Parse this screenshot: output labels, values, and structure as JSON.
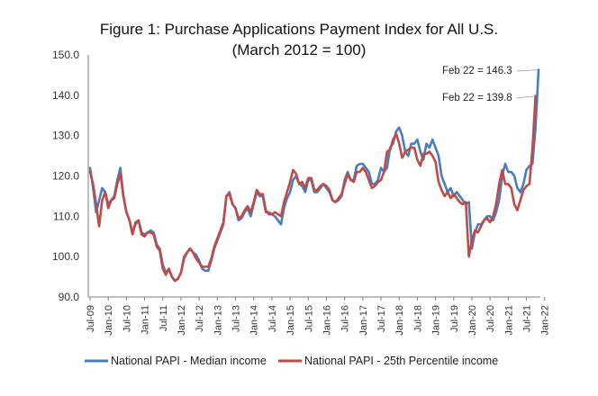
{
  "chart_data": {
    "type": "line",
    "title": "Figure 1: Purchase Applications Payment Index for All U.S.",
    "subtitle": "(March 2012 = 100)",
    "xlabel": "",
    "ylabel": "",
    "ylim": [
      90,
      150
    ],
    "yticks": [
      90,
      100,
      110,
      120,
      130,
      140,
      150
    ],
    "ytick_labels": [
      "90.0",
      "100.0",
      "110.0",
      "120.0",
      "130.0",
      "140.0",
      "150.0"
    ],
    "xtick_labels": [
      "Jul-09",
      "Jan-10",
      "Jul-10",
      "Jan-11",
      "Jul-11",
      "Jan-12",
      "Jul-12",
      "Jan-13",
      "Jul-13",
      "Jan-14",
      "Jul-14",
      "Jan-15",
      "Jul-15",
      "Jan-16",
      "Jul-16",
      "Jan-17",
      "Jul-17",
      "Jan-18",
      "Jul-18",
      "Jan-19",
      "Jul-19",
      "Jan-20",
      "Jul-20",
      "Jan-21",
      "Jul-21",
      "Jan-22"
    ],
    "x_start": "Jul-09",
    "x_end": "Feb-22",
    "grid": false,
    "legend_position": "bottom",
    "series": [
      {
        "name": "National PAPI - Median income",
        "color": "#4a7ebb",
        "values": [
          122,
          117,
          111,
          114,
          117,
          116,
          113,
          114,
          115,
          119,
          122,
          115,
          111,
          109,
          106,
          108,
          109,
          106,
          105.5,
          106,
          106.5,
          106,
          103,
          102,
          98,
          96,
          97,
          95,
          94,
          94.5,
          96,
          100,
          101,
          102,
          101,
          100.5,
          99,
          97,
          96.5,
          96.5,
          99,
          102,
          104,
          106,
          108,
          115,
          116,
          113,
          112,
          109,
          109.5,
          111,
          112,
          110,
          113,
          116,
          115,
          115,
          111,
          111,
          110.5,
          110,
          109,
          108,
          112,
          114.5,
          116,
          119,
          120,
          118,
          117.5,
          116,
          119,
          119,
          116,
          116,
          117,
          118,
          117,
          116,
          114,
          113.5,
          114,
          115,
          119,
          121,
          119,
          119,
          122.5,
          123,
          123,
          122,
          121,
          118,
          118,
          119,
          122,
          121,
          122,
          127,
          128,
          131,
          132,
          130,
          126,
          125,
          128,
          128,
          129,
          126,
          124,
          128,
          127,
          129,
          127,
          125,
          120,
          118,
          116,
          117,
          115,
          116,
          115,
          114,
          113,
          113.5,
          102,
          106,
          108,
          108,
          109,
          110,
          110,
          109,
          111,
          114,
          120,
          123,
          121,
          121,
          120,
          117,
          116,
          118,
          121.5,
          122.5,
          123,
          132,
          146.3
        ]
      },
      {
        "name": "National PAPI - 25th Percentile income",
        "color": "#be4b48",
        "values": [
          121,
          118,
          113,
          107.5,
          114,
          116,
          112,
          114,
          114.5,
          118,
          120.5,
          115,
          111,
          109,
          105.5,
          108.5,
          109,
          105.5,
          105,
          106,
          106,
          105.5,
          102.5,
          101.5,
          97,
          95.5,
          97,
          95,
          94,
          94.5,
          96,
          99.5,
          101,
          102,
          101,
          99.5,
          98.5,
          97.5,
          97.5,
          97.5,
          99.5,
          102.5,
          104.5,
          106.5,
          108.5,
          115,
          115.5,
          113,
          112,
          109.5,
          110,
          111.5,
          112.5,
          111,
          113.5,
          116.5,
          115.5,
          115.5,
          111.5,
          110.5,
          110.5,
          111,
          110.5,
          110,
          113.5,
          116,
          118.5,
          121.5,
          120.5,
          118,
          118.5,
          117,
          119.5,
          119.5,
          116.5,
          116.5,
          117.5,
          118,
          117.5,
          116.5,
          114,
          113.5,
          114.5,
          115.5,
          118,
          120.5,
          119,
          118.5,
          121,
          121,
          122,
          121,
          119,
          117,
          117.5,
          118.5,
          119,
          121,
          126,
          126.5,
          129,
          130.5,
          128,
          124.5,
          126,
          126.5,
          127,
          127,
          124,
          122.5,
          125.5,
          125.5,
          126,
          125,
          123.5,
          118.5,
          116.5,
          115,
          116,
          114.5,
          115.5,
          114.5,
          113.5,
          113,
          113.5,
          100,
          104,
          106.5,
          106,
          107.5,
          109,
          109.5,
          108.5,
          110,
          113,
          118,
          121.5,
          118,
          118,
          117,
          113,
          111.5,
          114,
          116.5,
          117.5,
          118,
          127,
          139.8
        ]
      }
    ],
    "annotations": [
      {
        "text": "Feb 22 = 146.3",
        "series": 0,
        "x": "Feb-22",
        "y": 146.3
      },
      {
        "text": "Feb 22 = 139.8",
        "series": 1,
        "x": "Feb-22",
        "y": 139.8
      }
    ]
  }
}
